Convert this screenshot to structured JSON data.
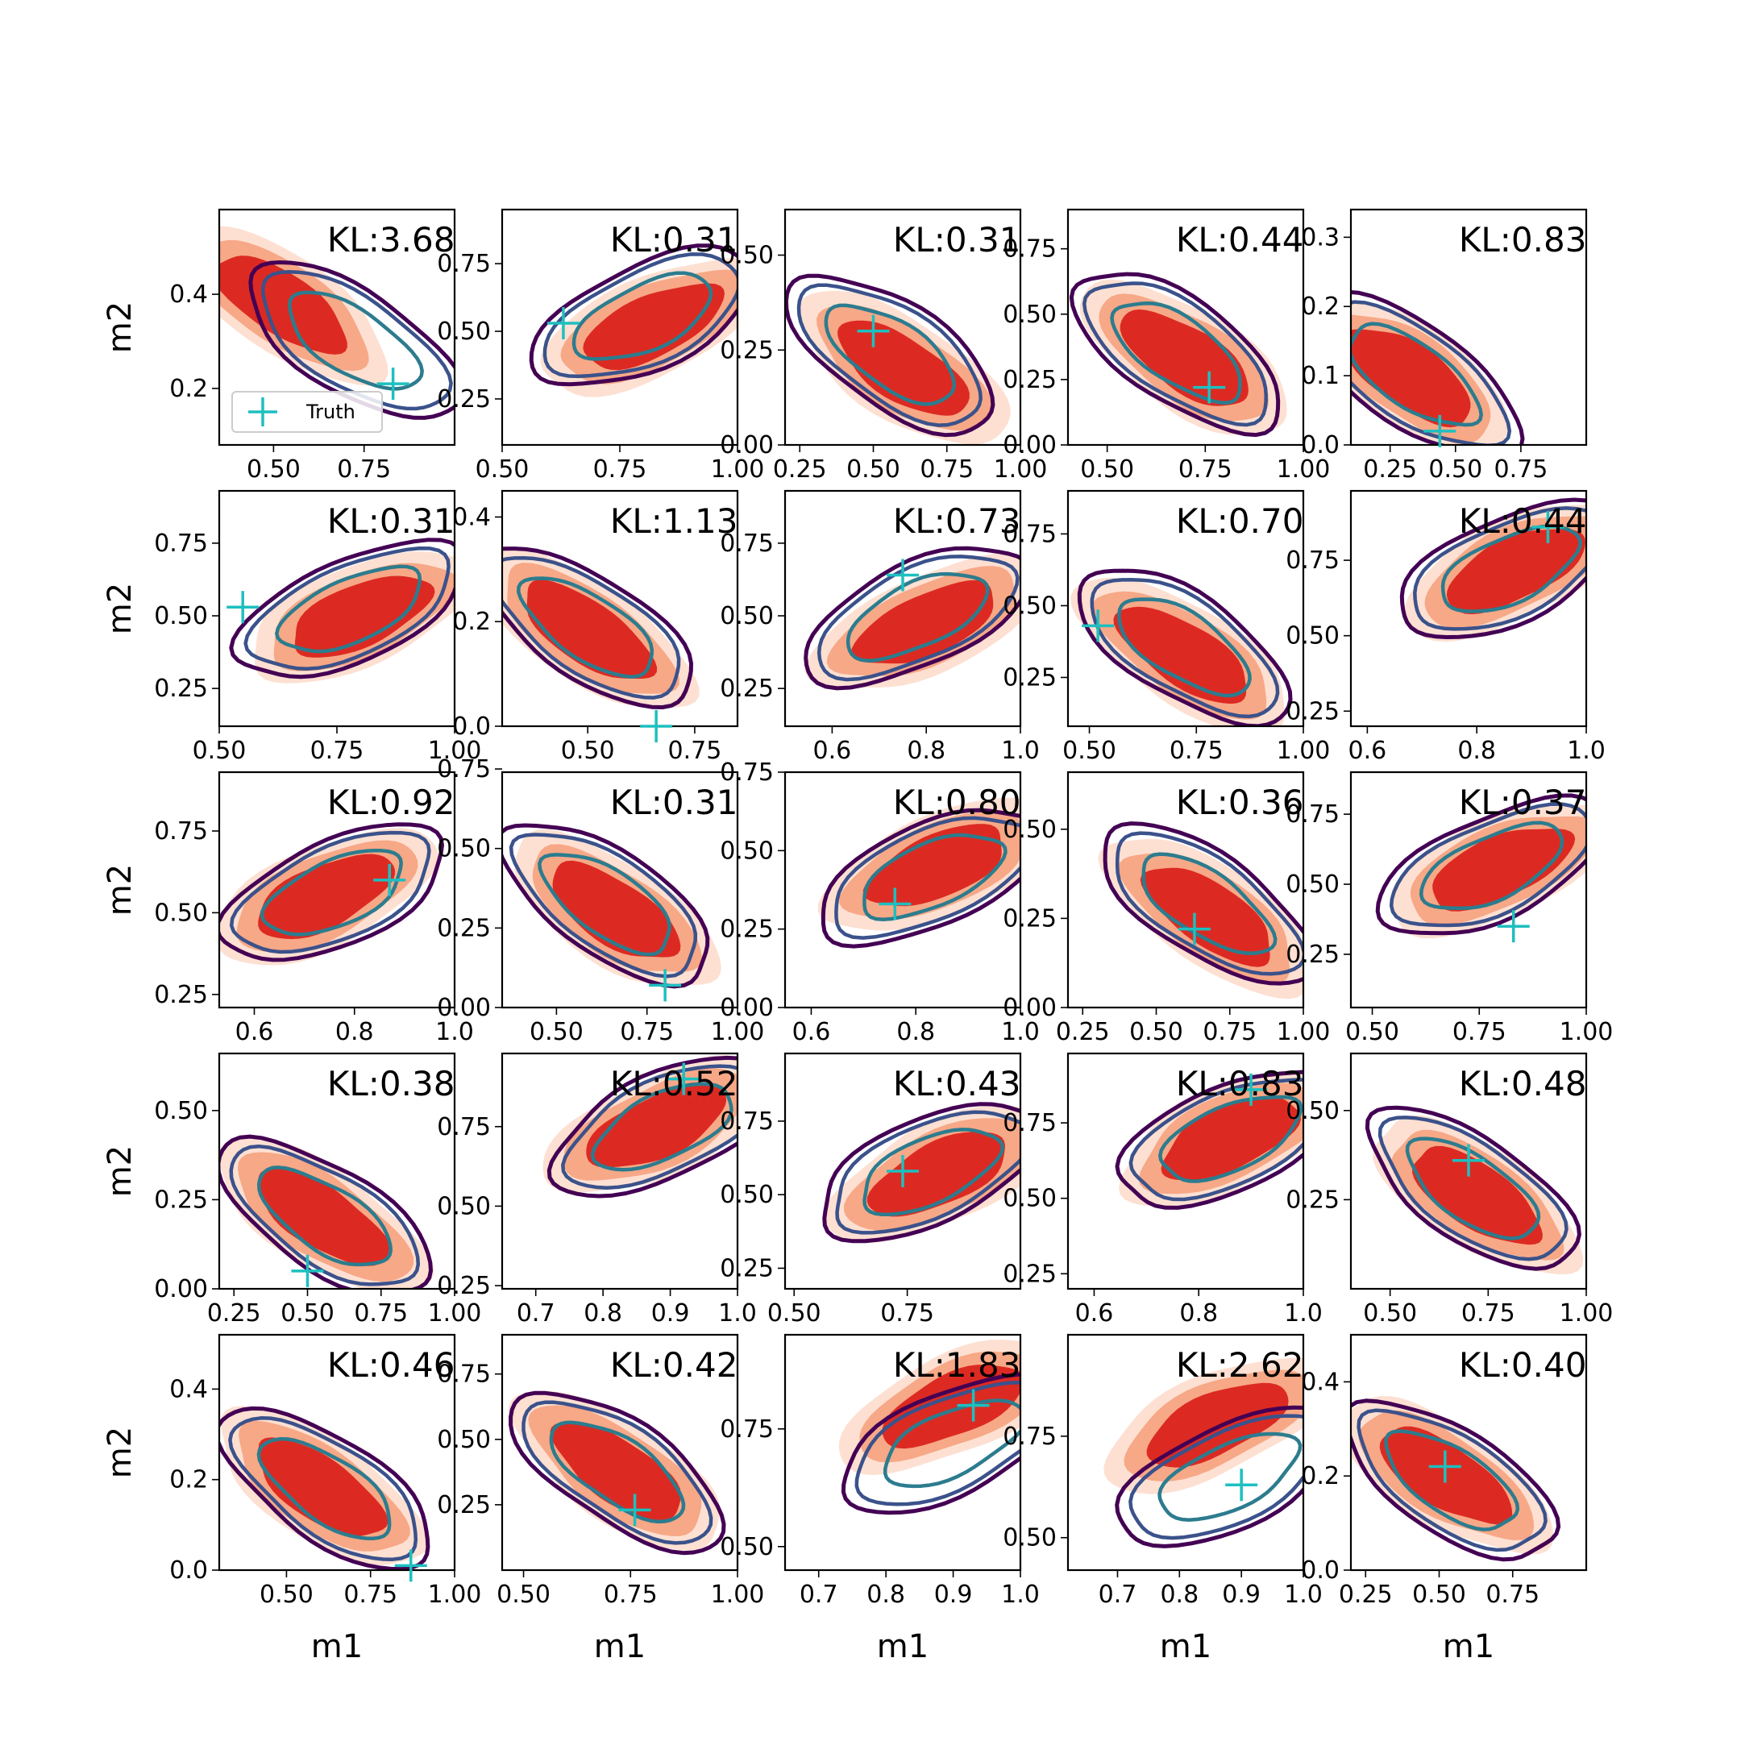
{
  "chart_data": {
    "type": "contour-grid",
    "rows": 5,
    "cols": 5,
    "xlabel": "m1",
    "ylabel": "m2",
    "legend": {
      "label": "Truth",
      "placement": "lower-left of first panel"
    },
    "colors": {
      "fill_outer": "#fde0d2",
      "fill_mid": "#f7a887",
      "fill_inner": "#dc2a22",
      "line_outer": "#440154",
      "line_mid": "#3b528b",
      "line_inner": "#2c7c8e",
      "truth": "#1ebfbf"
    },
    "panels": [
      {
        "kl": "KL:3.68",
        "xlim": [
          0.35,
          1.0
        ],
        "ylim": [
          0.08,
          0.58
        ],
        "xticks": [
          "0.50",
          "0.75"
        ],
        "xtv": [
          0.5,
          0.75
        ],
        "yticks": [
          "0.2",
          "0.4"
        ],
        "ytv": [
          0.2,
          0.4
        ],
        "truth": [
          0.83,
          0.21
        ],
        "trend": -1,
        "fill_cx": 0.52,
        "fill_cy": 0.38,
        "line_cx": 0.72,
        "line_cy": 0.3
      },
      {
        "kl": "KL:0.31",
        "xlim": [
          0.5,
          1.0
        ],
        "ylim": [
          0.08,
          0.95
        ],
        "xticks": [
          "0.50",
          "0.75",
          "1.00"
        ],
        "xtv": [
          0.5,
          0.75,
          1.0
        ],
        "yticks": [
          "0.25",
          "0.50",
          "0.75"
        ],
        "ytv": [
          0.25,
          0.5,
          0.75
        ],
        "truth": [
          0.63,
          0.53
        ],
        "trend": 1,
        "fill_cx": 0.82,
        "fill_cy": 0.52,
        "line_cx": 0.8,
        "line_cy": 0.55
      },
      {
        "kl": "KL:0.31",
        "xlim": [
          0.2,
          1.0
        ],
        "ylim": [
          0.0,
          0.62
        ],
        "xticks": [
          "0.25",
          "0.50",
          "0.75",
          "1.00"
        ],
        "xtv": [
          0.25,
          0.5,
          0.75,
          1.0
        ],
        "yticks": [
          "0.00",
          "0.25",
          "0.50"
        ],
        "ytv": [
          0.0,
          0.25,
          0.5
        ],
        "truth": [
          0.5,
          0.3
        ],
        "trend": -1,
        "fill_cx": 0.6,
        "fill_cy": 0.2,
        "line_cx": 0.56,
        "line_cy": 0.24
      },
      {
        "kl": "KL:0.44",
        "xlim": [
          0.4,
          1.0
        ],
        "ylim": [
          0.0,
          0.9
        ],
        "xticks": [
          "0.50",
          "0.75",
          "1.00"
        ],
        "xtv": [
          0.5,
          0.75,
          1.0
        ],
        "yticks": [
          "0.00",
          "0.25",
          "0.50",
          "0.75"
        ],
        "ytv": [
          0.0,
          0.25,
          0.5,
          0.75
        ],
        "truth": [
          0.76,
          0.22
        ],
        "trend": -1,
        "fill_cx": 0.7,
        "fill_cy": 0.33,
        "line_cx": 0.68,
        "line_cy": 0.36
      },
      {
        "kl": "KL:0.83",
        "xlim": [
          0.1,
          1.0
        ],
        "ylim": [
          0.0,
          0.34
        ],
        "xticks": [
          "0.25",
          "0.50",
          "0.75"
        ],
        "xtv": [
          0.25,
          0.5,
          0.75
        ],
        "yticks": [
          "0.0",
          "0.1",
          "0.2",
          "0.3"
        ],
        "ytv": [
          0.0,
          0.1,
          0.2,
          0.3
        ],
        "truth": [
          0.44,
          0.02
        ],
        "trend": -1,
        "fill_cx": 0.32,
        "fill_cy": 0.1,
        "line_cx": 0.34,
        "line_cy": 0.1
      },
      {
        "kl": "KL:0.31",
        "xlim": [
          0.5,
          1.0
        ],
        "ylim": [
          0.12,
          0.93
        ],
        "xticks": [
          "0.50",
          "0.75",
          "1.00"
        ],
        "xtv": [
          0.5,
          0.75,
          1.0
        ],
        "yticks": [
          "0.25",
          "0.50",
          "0.75"
        ],
        "ytv": [
          0.25,
          0.5,
          0.75
        ],
        "truth": [
          0.55,
          0.53
        ],
        "trend": 1,
        "fill_cx": 0.8,
        "fill_cy": 0.5,
        "line_cx": 0.78,
        "line_cy": 0.52
      },
      {
        "kl": "KL:1.13",
        "xlim": [
          0.3,
          0.85
        ],
        "ylim": [
          0.0,
          0.45
        ],
        "xticks": [
          "0.50",
          "0.75"
        ],
        "xtv": [
          0.5,
          0.75
        ],
        "yticks": [
          "0.0",
          "0.2",
          "0.4"
        ],
        "ytv": [
          0.0,
          0.2,
          0.4
        ],
        "truth": [
          0.66,
          0.0
        ],
        "trend": -1,
        "fill_cx": 0.5,
        "fill_cy": 0.18,
        "line_cx": 0.5,
        "line_cy": 0.19
      },
      {
        "kl": "KL:0.73",
        "xlim": [
          0.5,
          1.0
        ],
        "ylim": [
          0.12,
          0.93
        ],
        "xticks": [
          "0.6",
          "0.8",
          "1.0"
        ],
        "xtv": [
          0.6,
          0.8,
          1.0
        ],
        "yticks": [
          "0.25",
          "0.50",
          "0.75"
        ],
        "ytv": [
          0.25,
          0.5,
          0.75
        ],
        "truth": [
          0.75,
          0.64
        ],
        "trend": 1,
        "fill_cx": 0.8,
        "fill_cy": 0.47,
        "line_cx": 0.78,
        "line_cy": 0.5
      },
      {
        "kl": "KL:0.70",
        "xlim": [
          0.45,
          1.0
        ],
        "ylim": [
          0.08,
          0.9
        ],
        "xticks": [
          "0.50",
          "0.75",
          "1.00"
        ],
        "xtv": [
          0.5,
          0.75,
          1.0
        ],
        "yticks": [
          "0.25",
          "0.50",
          "0.75"
        ],
        "ytv": [
          0.25,
          0.5,
          0.75
        ],
        "truth": [
          0.52,
          0.43
        ],
        "trend": -1,
        "fill_cx": 0.72,
        "fill_cy": 0.33,
        "line_cx": 0.72,
        "line_cy": 0.36
      },
      {
        "kl": "KL:0.44",
        "xlim": [
          0.57,
          1.0
        ],
        "ylim": [
          0.2,
          0.98
        ],
        "xticks": [
          "0.6",
          "0.8",
          "1.0"
        ],
        "xtv": [
          0.6,
          0.8,
          1.0
        ],
        "yticks": [
          "0.25",
          "0.50",
          "0.75"
        ],
        "ytv": [
          0.25,
          0.5,
          0.75
        ],
        "truth": [
          0.93,
          0.86
        ],
        "trend": 1,
        "fill_cx": 0.87,
        "fill_cy": 0.72,
        "line_cx": 0.86,
        "line_cy": 0.72
      },
      {
        "kl": "KL:0.92",
        "xlim": [
          0.53,
          1.0
        ],
        "ylim": [
          0.21,
          0.93
        ],
        "xticks": [
          "0.6",
          "0.8",
          "1.0"
        ],
        "xtv": [
          0.6,
          0.8,
          1.0
        ],
        "yticks": [
          "0.25",
          "0.50",
          "0.75"
        ],
        "ytv": [
          0.25,
          0.5,
          0.75
        ],
        "truth": [
          0.87,
          0.6
        ],
        "trend": 1,
        "fill_cx": 0.74,
        "fill_cy": 0.55,
        "line_cx": 0.76,
        "line_cy": 0.56
      },
      {
        "kl": "KL:0.31",
        "xlim": [
          0.35,
          1.0
        ],
        "ylim": [
          0.0,
          0.74
        ],
        "xticks": [
          "0.50",
          "0.75",
          "1.00"
        ],
        "xtv": [
          0.5,
          0.75,
          1.0
        ],
        "yticks": [
          "0.00",
          "0.25",
          "0.50",
          "0.75"
        ],
        "ytv": [
          0.0,
          0.25,
          0.5,
          0.75
        ],
        "truth": [
          0.8,
          0.07
        ],
        "trend": -1,
        "fill_cx": 0.66,
        "fill_cy": 0.3,
        "line_cx": 0.64,
        "line_cy": 0.33
      },
      {
        "kl": "KL:0.80",
        "xlim": [
          0.55,
          1.0
        ],
        "ylim": [
          0.0,
          0.75
        ],
        "xticks": [
          "0.6",
          "0.8",
          "1.0"
        ],
        "xtv": [
          0.6,
          0.8,
          1.0
        ],
        "yticks": [
          "0.00",
          "0.25",
          "0.50",
          "0.75"
        ],
        "ytv": [
          0.0,
          0.25,
          0.5,
          0.75
        ],
        "truth": [
          0.76,
          0.33
        ],
        "trend": 1,
        "fill_cx": 0.84,
        "fill_cy": 0.45,
        "line_cx": 0.83,
        "line_cy": 0.42
      },
      {
        "kl": "KL:0.36",
        "xlim": [
          0.2,
          1.0
        ],
        "ylim": [
          0.0,
          0.66
        ],
        "xticks": [
          "0.25",
          "0.50",
          "0.75",
          "1.00"
        ],
        "xtv": [
          0.25,
          0.5,
          0.75,
          1.0
        ],
        "yticks": [
          "0.00",
          "0.25",
          "0.50"
        ],
        "ytv": [
          0.0,
          0.25,
          0.5
        ],
        "truth": [
          0.63,
          0.22
        ],
        "trend": -1,
        "fill_cx": 0.68,
        "fill_cy": 0.26,
        "line_cx": 0.67,
        "line_cy": 0.29
      },
      {
        "kl": "KL:0.37",
        "xlim": [
          0.45,
          1.0
        ],
        "ylim": [
          0.06,
          0.9
        ],
        "xticks": [
          "0.50",
          "0.75",
          "1.00"
        ],
        "xtv": [
          0.5,
          0.75,
          1.0
        ],
        "yticks": [
          "0.25",
          "0.50",
          "0.75"
        ],
        "ytv": [
          0.25,
          0.5,
          0.75
        ],
        "truth": [
          0.83,
          0.35
        ],
        "trend": 1,
        "fill_cx": 0.8,
        "fill_cy": 0.56,
        "line_cx": 0.78,
        "line_cy": 0.56
      },
      {
        "kl": "KL:0.38",
        "xlim": [
          0.2,
          1.0
        ],
        "ylim": [
          0.0,
          0.66
        ],
        "xticks": [
          "0.25",
          "0.50",
          "0.75",
          "1.00"
        ],
        "xtv": [
          0.25,
          0.5,
          0.75,
          1.0
        ],
        "yticks": [
          "0.00",
          "0.25",
          "0.50"
        ],
        "ytv": [
          0.0,
          0.25,
          0.5
        ],
        "truth": [
          0.5,
          0.05
        ],
        "trend": -1,
        "fill_cx": 0.55,
        "fill_cy": 0.2,
        "line_cx": 0.56,
        "line_cy": 0.2
      },
      {
        "kl": "KL:0.52",
        "xlim": [
          0.65,
          1.0
        ],
        "ylim": [
          0.24,
          0.98
        ],
        "xticks": [
          "0.7",
          "0.8",
          "0.9",
          "1.0"
        ],
        "xtv": [
          0.7,
          0.8,
          0.9,
          1.0
        ],
        "yticks": [
          "0.25",
          "0.50",
          "0.75"
        ],
        "ytv": [
          0.25,
          0.5,
          0.75
        ],
        "truth": [
          0.92,
          0.9
        ],
        "trend": 1,
        "fill_cx": 0.88,
        "fill_cy": 0.75,
        "line_cx": 0.89,
        "line_cy": 0.75
      },
      {
        "kl": "KL:0.43",
        "xlim": [
          0.48,
          1.0
        ],
        "ylim": [
          0.18,
          0.98
        ],
        "xticks": [
          "0.50",
          "0.75"
        ],
        "xtv": [
          0.5,
          0.75
        ],
        "yticks": [
          "0.25",
          "0.50",
          "0.75"
        ],
        "ytv": [
          0.25,
          0.5,
          0.75
        ],
        "truth": [
          0.74,
          0.58
        ],
        "trend": 1,
        "fill_cx": 0.82,
        "fill_cy": 0.57,
        "line_cx": 0.8,
        "line_cy": 0.58
      },
      {
        "kl": "KL:0.83",
        "xlim": [
          0.55,
          1.0
        ],
        "ylim": [
          0.2,
          0.98
        ],
        "xticks": [
          "0.6",
          "0.8",
          "1.0"
        ],
        "xtv": [
          0.6,
          0.8,
          1.0
        ],
        "yticks": [
          "0.25",
          "0.50",
          "0.75"
        ],
        "ytv": [
          0.25,
          0.5,
          0.75
        ],
        "truth": [
          0.9,
          0.86
        ],
        "trend": 1,
        "fill_cx": 0.86,
        "fill_cy": 0.7,
        "line_cx": 0.86,
        "line_cy": 0.7
      },
      {
        "kl": "KL:0.48",
        "xlim": [
          0.4,
          1.0
        ],
        "ylim": [
          0.0,
          0.66
        ],
        "xticks": [
          "0.50",
          "0.75",
          "1.00"
        ],
        "xtv": [
          0.5,
          0.75,
          1.0
        ],
        "yticks": [
          "0.25",
          "0.50"
        ],
        "ytv": [
          0.25,
          0.5
        ],
        "truth": [
          0.7,
          0.36
        ],
        "trend": -1,
        "fill_cx": 0.72,
        "fill_cy": 0.26,
        "line_cx": 0.71,
        "line_cy": 0.28
      },
      {
        "kl": "KL:0.46",
        "xlim": [
          0.3,
          1.0
        ],
        "ylim": [
          0.0,
          0.52
        ],
        "xticks": [
          "0.50",
          "0.75",
          "1.00"
        ],
        "xtv": [
          0.5,
          0.75,
          1.0
        ],
        "yticks": [
          "0.0",
          "0.2",
          "0.4"
        ],
        "ytv": [
          0.0,
          0.2,
          0.4
        ],
        "truth": [
          0.87,
          0.01
        ],
        "trend": -1,
        "fill_cx": 0.6,
        "fill_cy": 0.18,
        "line_cx": 0.62,
        "line_cy": 0.18
      },
      {
        "kl": "KL:0.42",
        "xlim": [
          0.45,
          1.0
        ],
        "ylim": [
          0.0,
          0.9
        ],
        "xticks": [
          "0.50",
          "0.75",
          "1.00"
        ],
        "xtv": [
          0.5,
          0.75,
          1.0
        ],
        "yticks": [
          "0.25",
          "0.50",
          "0.75"
        ],
        "ytv": [
          0.25,
          0.5,
          0.75
        ],
        "truth": [
          0.76,
          0.23
        ],
        "trend": -1,
        "fill_cx": 0.72,
        "fill_cy": 0.38,
        "line_cx": 0.72,
        "line_cy": 0.38
      },
      {
        "kl": "KL:1.83",
        "xlim": [
          0.65,
          1.0
        ],
        "ylim": [
          0.45,
          0.95
        ],
        "xticks": [
          "0.7",
          "0.8",
          "0.9",
          "1.0"
        ],
        "xtv": [
          0.7,
          0.8,
          0.9,
          1.0
        ],
        "yticks": [
          "0.50",
          "0.75"
        ],
        "ytv": [
          0.5,
          0.75
        ],
        "truth": [
          0.93,
          0.8
        ],
        "trend": 1,
        "fill_cx": 0.9,
        "fill_cy": 0.8,
        "line_cx": 0.9,
        "line_cy": 0.72
      },
      {
        "kl": "KL:2.62",
        "xlim": [
          0.62,
          1.0
        ],
        "ylim": [
          0.42,
          1.0
        ],
        "xticks": [
          "0.7",
          "0.8",
          "0.9",
          "1.0"
        ],
        "xtv": [
          0.7,
          0.8,
          0.9,
          1.0
        ],
        "yticks": [
          "0.50",
          "0.75"
        ],
        "ytv": [
          0.5,
          0.75
        ],
        "truth": [
          0.9,
          0.63
        ],
        "trend": 1,
        "fill_cx": 0.86,
        "fill_cy": 0.78,
        "line_cx": 0.88,
        "line_cy": 0.65
      },
      {
        "kl": "KL:0.40",
        "xlim": [
          0.2,
          1.0
        ],
        "ylim": [
          0.0,
          0.5
        ],
        "xticks": [
          "0.25",
          "0.50",
          "0.75"
        ],
        "xtv": [
          0.25,
          0.5,
          0.75
        ],
        "yticks": [
          "0.0",
          "0.2",
          "0.4"
        ],
        "ytv": [
          0.0,
          0.2,
          0.4
        ],
        "truth": [
          0.52,
          0.22
        ],
        "trend": -1,
        "fill_cx": 0.52,
        "fill_cy": 0.2,
        "line_cx": 0.54,
        "line_cy": 0.19
      }
    ]
  }
}
